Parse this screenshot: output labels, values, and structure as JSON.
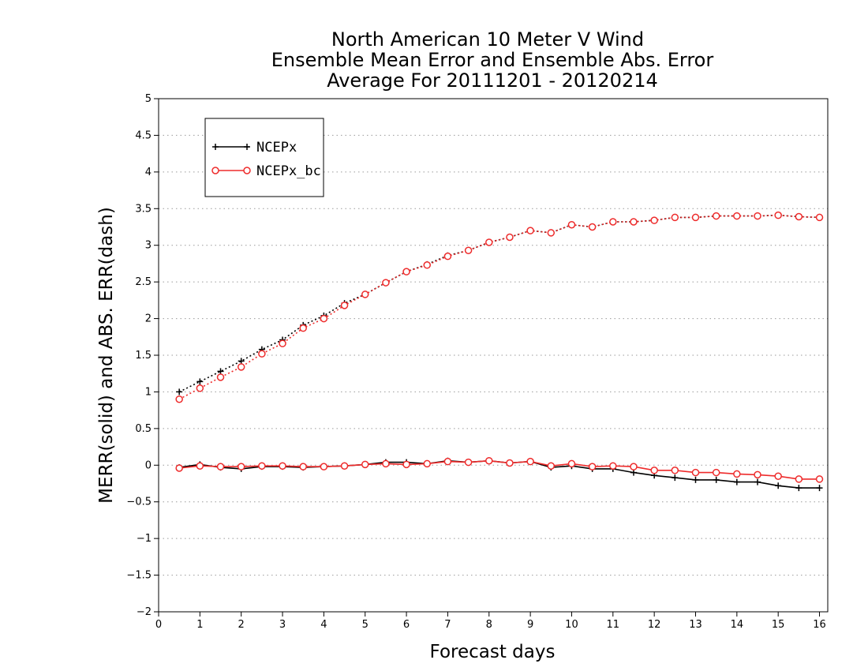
{
  "chart_data": {
    "type": "line",
    "title": [
      "North American 10 Meter V Wind",
      "Ensemble Mean Error and Ensemble Abs. Error",
      "Average For 20111201 - 20120214"
    ],
    "xlabel": "Forecast days",
    "ylabel": "MERR(solid) and ABS. ERR(dash)",
    "xlim": [
      0,
      16.2
    ],
    "ylim": [
      -2,
      5
    ],
    "xticks": [
      "0",
      "1",
      "2",
      "3",
      "4",
      "5",
      "6",
      "7",
      "8",
      "9",
      "10",
      "11",
      "12",
      "13",
      "14",
      "15",
      "16"
    ],
    "yticks": [
      "5",
      "4.5",
      "4",
      "3.5",
      "3",
      "2.5",
      "2",
      "1.5",
      "1",
      "0.5",
      "0",
      "−0.5",
      "−1",
      "−1.5",
      "−2"
    ],
    "ytick_values": [
      5,
      4.5,
      4,
      3.5,
      3,
      2.5,
      2,
      1.5,
      1,
      0.5,
      0,
      -0.5,
      -1,
      -1.5,
      -2
    ],
    "grid": "horizontal dotted",
    "legend_position": "top-left",
    "x": [
      0.5,
      1,
      1.5,
      2,
      2.5,
      3,
      3.5,
      4,
      4.5,
      5,
      5.5,
      6,
      6.5,
      7,
      7.5,
      8,
      8.5,
      9,
      9.5,
      10,
      10.5,
      11,
      11.5,
      12,
      12.5,
      13,
      13.5,
      14,
      14.5,
      15,
      15.5,
      16
    ],
    "series": [
      {
        "name": "NCEPx",
        "color": "#000000",
        "marker": "plus",
        "mean_error": [
          -0.03,
          0.01,
          -0.03,
          -0.05,
          -0.02,
          -0.02,
          -0.03,
          -0.02,
          -0.01,
          0.01,
          0.04,
          0.04,
          0.02,
          0.06,
          0.04,
          0.06,
          0.03,
          0.05,
          -0.03,
          -0.01,
          -0.05,
          -0.05,
          -0.1,
          -0.14,
          -0.17,
          -0.2,
          -0.2,
          -0.23,
          -0.23,
          -0.28,
          -0.31,
          -0.31
        ],
        "abs_error": [
          1.0,
          1.14,
          1.28,
          1.42,
          1.58,
          1.71,
          1.91,
          2.04,
          2.21,
          2.33,
          2.49,
          2.64,
          2.74,
          2.86,
          2.93,
          3.04,
          3.11,
          3.2,
          3.17,
          3.28,
          3.25,
          3.32,
          3.32,
          3.34,
          3.38,
          3.38,
          3.4,
          3.4,
          3.4,
          3.41,
          3.39,
          3.38
        ]
      },
      {
        "name": "NCEPx_bc",
        "color": "#ee2b2b",
        "marker": "circle",
        "mean_error": [
          -0.04,
          -0.01,
          -0.02,
          -0.02,
          -0.01,
          -0.01,
          -0.02,
          -0.02,
          -0.01,
          0.01,
          0.02,
          0.01,
          0.02,
          0.05,
          0.04,
          0.06,
          0.03,
          0.05,
          -0.01,
          0.02,
          -0.02,
          -0.01,
          -0.02,
          -0.07,
          -0.07,
          -0.1,
          -0.1,
          -0.12,
          -0.13,
          -0.15,
          -0.19,
          -0.19
        ],
        "abs_error": [
          0.9,
          1.05,
          1.2,
          1.34,
          1.52,
          1.66,
          1.87,
          2.0,
          2.18,
          2.33,
          2.49,
          2.64,
          2.73,
          2.85,
          2.93,
          3.04,
          3.11,
          3.2,
          3.17,
          3.28,
          3.25,
          3.32,
          3.32,
          3.34,
          3.38,
          3.38,
          3.4,
          3.4,
          3.4,
          3.41,
          3.39,
          3.38
        ]
      }
    ]
  }
}
